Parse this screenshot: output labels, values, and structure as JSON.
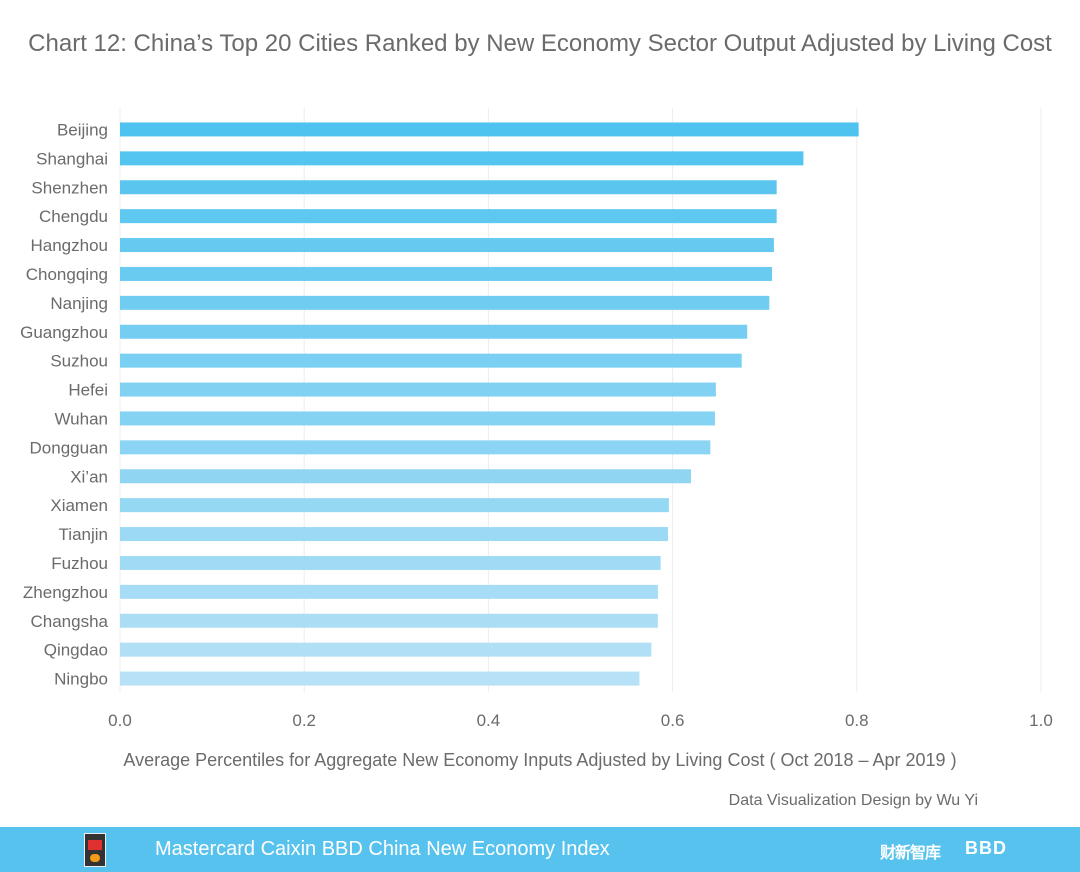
{
  "chart_data": {
    "type": "bar",
    "orientation": "horizontal",
    "title": "Chart 12: China’s Top 20 Cities Ranked by New Economy Sector Output Adjusted by Living Cost",
    "xlabel": "Average Percentiles for Aggregate New Economy Inputs Adjusted by Living Cost ( Oct 2018 – Apr 2019 )",
    "ylabel": "",
    "xlim": [
      0,
      1.0
    ],
    "xticks": [
      "0.0",
      "0.2",
      "0.4",
      "0.6",
      "0.8",
      "1.0"
    ],
    "grid": "vertical",
    "categories": [
      "Beijing",
      "Shanghai",
      "Shenzhen",
      "Chengdu",
      "Hangzhou",
      "Chongqing",
      "Nanjing",
      "Guangzhou",
      "Suzhou",
      "Hefei",
      "Wuhan",
      "Dongguan",
      "Xi’an",
      "Xiamen",
      "Tianjin",
      "Fuzhou",
      "Zhengzhou",
      "Changsha",
      "Qingdao",
      "Ningbo"
    ],
    "values": [
      0.802,
      0.742,
      0.713,
      0.713,
      0.71,
      0.708,
      0.705,
      0.681,
      0.675,
      0.647,
      0.646,
      0.641,
      0.62,
      0.596,
      0.595,
      0.587,
      0.584,
      0.584,
      0.577,
      0.564
    ],
    "colors": {
      "top": "#4fc3ef",
      "bottom": "#b6e1f6",
      "grid": "#ececec",
      "text": "#6b6b6b"
    }
  },
  "credit": "Data Visualization Design by Wu Yi",
  "footer": {
    "text": "Mastercard Caixin BBD China New Economy Index",
    "logo_nei": "NEI",
    "logo_caixin": "财新智库",
    "logo_bbd": "BBD",
    "color": "#58c2ee"
  }
}
